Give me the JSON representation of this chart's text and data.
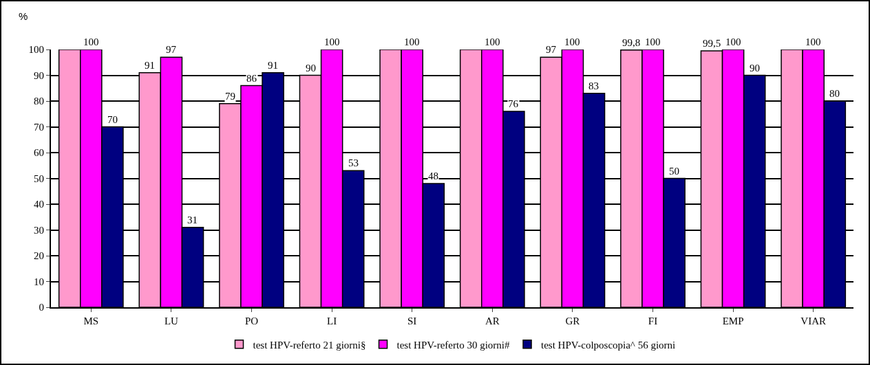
{
  "chart_data": {
    "type": "bar",
    "ylabel": "%",
    "categories": [
      "MS",
      "LU",
      "PO",
      "LI",
      "SI",
      "AR",
      "GR",
      "FI",
      "EMP",
      "VIAR"
    ],
    "series": [
      {
        "name": "test HPV-referto 21 giorni§",
        "color": "#ff99cc",
        "values": [
          100,
          91,
          79,
          90,
          100,
          100,
          97,
          99.8,
          99.5,
          100
        ],
        "value_labels": [
          null,
          "91",
          "79",
          "90",
          null,
          null,
          "97",
          "99,8",
          "99,5",
          null
        ]
      },
      {
        "name": "test HPV-referto 30 giorni#",
        "color": "#ff00ff",
        "values": [
          100,
          97,
          86,
          100,
          100,
          100,
          100,
          100,
          100,
          100
        ],
        "value_labels": [
          "100",
          "97",
          "86",
          "100",
          "100",
          "100",
          "100",
          "100",
          "100",
          "100"
        ]
      },
      {
        "name": "test HPV-colposcopia^ 56 giorni",
        "color": "#000080",
        "values": [
          70,
          31,
          91,
          53,
          48,
          76,
          83,
          50,
          90,
          80
        ],
        "value_labels": [
          "70",
          "31",
          "91",
          "53",
          "48",
          "76",
          "83",
          "50",
          "90",
          "80"
        ]
      }
    ],
    "ylim": [
      0,
      100
    ],
    "yticks": [
      0,
      10,
      20,
      30,
      40,
      50,
      60,
      70,
      80,
      90,
      100
    ],
    "grid": "y",
    "legend": "bottom"
  }
}
